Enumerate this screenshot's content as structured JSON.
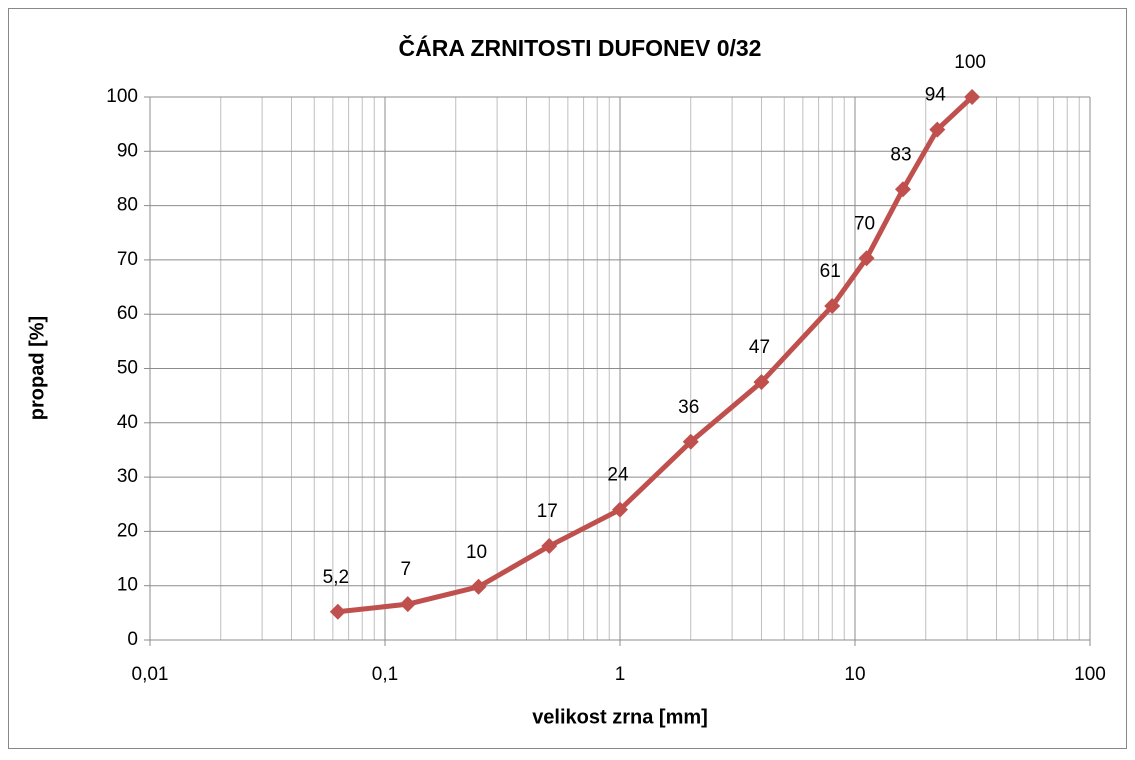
{
  "chart_data": {
    "type": "line",
    "title": "ČÁRA ZRNITOSTI DUFONEV 0/32",
    "x_label": "velikost zrna [mm]",
    "y_label": "propad [%]",
    "x": [
      0.063,
      0.125,
      0.25,
      0.5,
      1,
      2,
      4,
      8,
      11.2,
      16,
      22.4,
      31.5
    ],
    "series": [
      {
        "name": "propad",
        "color": "#c0504d",
        "values": [
          5.2,
          6.6,
          9.8,
          17.3,
          24,
          36.5,
          47.5,
          61.5,
          70.3,
          83,
          94,
          100
        ],
        "value_labels": [
          "5,2",
          "7",
          "10",
          "17",
          "24",
          "36",
          "47",
          "61",
          "70",
          "83",
          "94",
          "100"
        ]
      }
    ],
    "xlim": [
      0.01,
      100
    ],
    "xticks": [
      {
        "value": 0.01,
        "label": "0,01"
      },
      {
        "value": 0.1,
        "label": "0,1"
      },
      1,
      10,
      100
    ],
    "ylim": [
      0,
      100
    ],
    "yticks": [
      0,
      10,
      20,
      30,
      40,
      50,
      60,
      70,
      80,
      90,
      100
    ],
    "x_log": true,
    "grid": true,
    "minor_grid": true
  }
}
